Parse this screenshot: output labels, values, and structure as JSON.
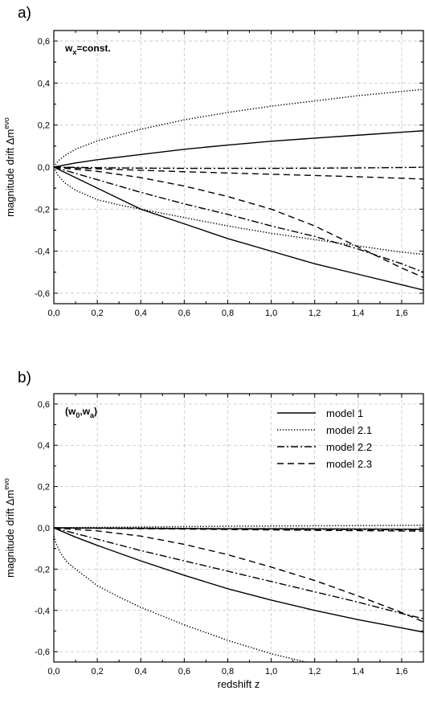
{
  "chart_data": [
    {
      "type": "line",
      "panel_label": "a)",
      "annotation_main": "w",
      "annotation_sub": "x",
      "annotation_rest": "=const.",
      "xlabel": "",
      "ylabel": "magnitude drift Δm",
      "ylabel_sup": "evo",
      "xlim": [
        0.0,
        1.7
      ],
      "ylim": [
        -0.65,
        0.65
      ],
      "xticks": [
        "0,0",
        "0,2",
        "0,4",
        "0,6",
        "0,8",
        "1,0",
        "1,2",
        "1,4",
        "1,6"
      ],
      "yticks": [
        "0,6",
        "0,4",
        "0,2",
        "0,0",
        "-0,2",
        "-0,4",
        "-0,6"
      ],
      "grid": true,
      "series": [
        {
          "style": "solid",
          "x": [
            0,
            0.1,
            0.2,
            0.4,
            0.6,
            0.8,
            1.0,
            1.2,
            1.4,
            1.6,
            1.7
          ],
          "y": [
            0,
            0.02,
            0.035,
            0.06,
            0.085,
            0.105,
            0.123,
            0.138,
            0.152,
            0.166,
            0.173
          ]
        },
        {
          "style": "solid",
          "x": [
            0,
            0.1,
            0.2,
            0.3,
            0.4,
            0.6,
            0.8,
            1.0,
            1.2,
            1.4,
            1.6,
            1.7
          ],
          "y": [
            0,
            -0.05,
            -0.1,
            -0.15,
            -0.2,
            -0.27,
            -0.34,
            -0.4,
            -0.46,
            -0.51,
            -0.56,
            -0.585
          ]
        },
        {
          "style": "dotted",
          "x": [
            0,
            0.02,
            0.05,
            0.1,
            0.2,
            0.4,
            0.6,
            0.8,
            1.0,
            1.2,
            1.4,
            1.6,
            1.7
          ],
          "y": [
            0,
            0.03,
            0.055,
            0.085,
            0.125,
            0.18,
            0.225,
            0.26,
            0.29,
            0.315,
            0.34,
            0.36,
            0.37
          ]
        },
        {
          "style": "dotted",
          "x": [
            0,
            0.02,
            0.05,
            0.1,
            0.2,
            0.3,
            0.4,
            0.6,
            0.8,
            1.0,
            1.2,
            1.4,
            1.6,
            1.7
          ],
          "y": [
            0,
            -0.04,
            -0.075,
            -0.11,
            -0.155,
            -0.18,
            -0.2,
            -0.24,
            -0.28,
            -0.315,
            -0.345,
            -0.375,
            -0.405,
            -0.415
          ]
        },
        {
          "style": "dashdot",
          "x": [
            0,
            0.2,
            0.4,
            0.6,
            0.8,
            1.0,
            1.2,
            1.4,
            1.6,
            1.7
          ],
          "y": [
            0,
            -0.003,
            -0.005,
            -0.006,
            -0.006,
            -0.006,
            -0.005,
            -0.004,
            -0.002,
            -0.001
          ]
        },
        {
          "style": "dashdot",
          "x": [
            0,
            0.2,
            0.4,
            0.6,
            0.8,
            1.0,
            1.2,
            1.4,
            1.6,
            1.7
          ],
          "y": [
            0,
            -0.06,
            -0.12,
            -0.175,
            -0.225,
            -0.28,
            -0.33,
            -0.39,
            -0.46,
            -0.5
          ]
        },
        {
          "style": "dashed",
          "x": [
            0,
            0.2,
            0.4,
            0.6,
            0.8,
            1.0,
            1.2,
            1.4,
            1.6,
            1.7
          ],
          "y": [
            0,
            -0.008,
            -0.015,
            -0.022,
            -0.028,
            -0.034,
            -0.04,
            -0.046,
            -0.053,
            -0.057
          ]
        },
        {
          "style": "dashed",
          "x": [
            0,
            0.2,
            0.4,
            0.6,
            0.8,
            1.0,
            1.2,
            1.3,
            1.4,
            1.5,
            1.6,
            1.7
          ],
          "y": [
            0,
            -0.02,
            -0.05,
            -0.09,
            -0.14,
            -0.2,
            -0.28,
            -0.33,
            -0.38,
            -0.43,
            -0.48,
            -0.525
          ]
        }
      ]
    },
    {
      "type": "line",
      "panel_label": "b)",
      "annotation_main": "(w",
      "annotation_sub": "0",
      "annotation_rest": ",w",
      "annotation_sub2": "a",
      "annotation_end": ")",
      "xlabel": "redshift z",
      "ylabel": "magnitude drift Δm",
      "ylabel_sup": "evo",
      "xlim": [
        0.0,
        1.7
      ],
      "ylim": [
        -0.65,
        0.65
      ],
      "xticks": [
        "0,0",
        "0,2",
        "0,4",
        "0,6",
        "0,8",
        "1,0",
        "1,2",
        "1,4",
        "1,6"
      ],
      "yticks": [
        "0,6",
        "0,4",
        "0,2",
        "0,0",
        "-0,2",
        "-0,4",
        "-0,6"
      ],
      "grid": true,
      "legend_position": "top-right",
      "legend": [
        {
          "name": "model 1",
          "style": "solid"
        },
        {
          "name": "model 2.1",
          "style": "dotted"
        },
        {
          "name": "model 2.2",
          "style": "dashdot"
        },
        {
          "name": "model 2.3",
          "style": "dashed"
        }
      ],
      "series": [
        {
          "style": "solid",
          "x": [
            0,
            0.4,
            0.8,
            1.2,
            1.7
          ],
          "y": [
            0,
            -0.002,
            -0.004,
            -0.005,
            -0.007
          ]
        },
        {
          "style": "solid",
          "x": [
            0,
            0.1,
            0.2,
            0.4,
            0.6,
            0.8,
            1.0,
            1.2,
            1.4,
            1.6,
            1.7
          ],
          "y": [
            0,
            -0.045,
            -0.085,
            -0.16,
            -0.23,
            -0.295,
            -0.35,
            -0.4,
            -0.445,
            -0.485,
            -0.505
          ]
        },
        {
          "style": "dotted",
          "x": [
            0,
            0.2,
            0.4,
            0.6,
            0.8,
            1.0,
            1.2,
            1.4,
            1.6,
            1.7
          ],
          "y": [
            0,
            0.002,
            0.004,
            0.006,
            0.008,
            0.009,
            0.01,
            0.011,
            0.012,
            0.013
          ]
        },
        {
          "style": "dotted",
          "x": [
            0,
            0.01,
            0.03,
            0.06,
            0.1,
            0.2,
            0.3,
            0.4,
            0.6,
            0.8,
            1.0,
            1.2
          ],
          "y": [
            -0.04,
            -0.075,
            -0.12,
            -0.165,
            -0.2,
            -0.28,
            -0.335,
            -0.385,
            -0.47,
            -0.545,
            -0.61,
            -0.66
          ]
        },
        {
          "style": "dashdot",
          "x": [
            0,
            0.4,
            0.8,
            1.2,
            1.7
          ],
          "y": [
            0,
            -0.003,
            -0.005,
            -0.007,
            -0.01
          ]
        },
        {
          "style": "dashdot",
          "x": [
            0,
            0.2,
            0.4,
            0.6,
            0.8,
            1.0,
            1.2,
            1.4,
            1.6,
            1.7
          ],
          "y": [
            0,
            -0.055,
            -0.11,
            -0.16,
            -0.21,
            -0.26,
            -0.31,
            -0.36,
            -0.415,
            -0.44
          ]
        },
        {
          "style": "dashed",
          "x": [
            0,
            0.4,
            0.8,
            1.2,
            1.7
          ],
          "y": [
            0,
            -0.004,
            -0.008,
            -0.012,
            -0.016
          ]
        },
        {
          "style": "dashed",
          "x": [
            0,
            0.2,
            0.4,
            0.6,
            0.8,
            1.0,
            1.2,
            1.4,
            1.6,
            1.7
          ],
          "y": [
            0,
            -0.015,
            -0.04,
            -0.08,
            -0.13,
            -0.19,
            -0.255,
            -0.33,
            -0.41,
            -0.455
          ]
        }
      ]
    }
  ]
}
